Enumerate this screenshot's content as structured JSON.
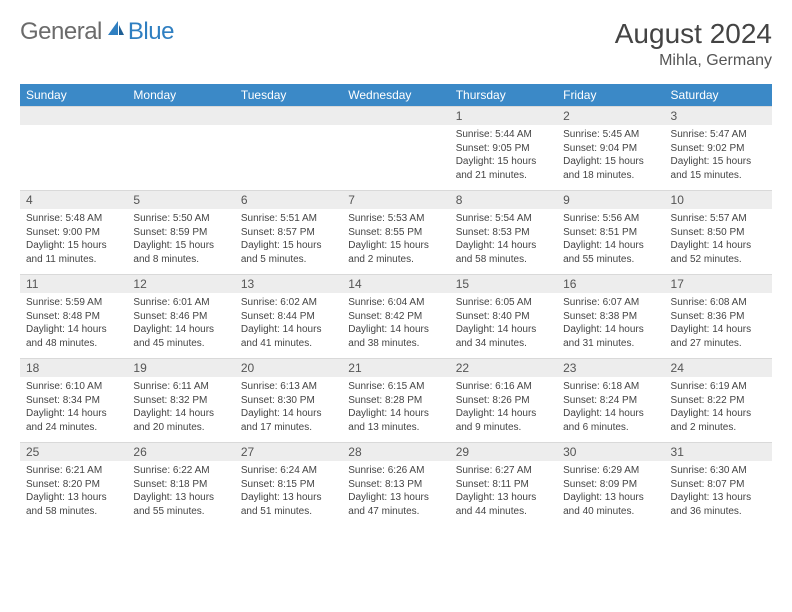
{
  "brand": {
    "text1": "General",
    "text2": "Blue"
  },
  "title": "August 2024",
  "location": "Mihla, Germany",
  "colors": {
    "header_bg": "#3b89c7",
    "header_text": "#ffffff",
    "daynum_bg": "#ededed",
    "border": "#d9d9d9",
    "brand_gray": "#6b6b6b",
    "brand_blue": "#2f7fc1"
  },
  "weekdays": [
    "Sunday",
    "Monday",
    "Tuesday",
    "Wednesday",
    "Thursday",
    "Friday",
    "Saturday"
  ],
  "weeks": [
    [
      null,
      null,
      null,
      null,
      {
        "n": "1",
        "sr": "Sunrise: 5:44 AM",
        "ss": "Sunset: 9:05 PM",
        "d1": "Daylight: 15 hours",
        "d2": "and 21 minutes."
      },
      {
        "n": "2",
        "sr": "Sunrise: 5:45 AM",
        "ss": "Sunset: 9:04 PM",
        "d1": "Daylight: 15 hours",
        "d2": "and 18 minutes."
      },
      {
        "n": "3",
        "sr": "Sunrise: 5:47 AM",
        "ss": "Sunset: 9:02 PM",
        "d1": "Daylight: 15 hours",
        "d2": "and 15 minutes."
      }
    ],
    [
      {
        "n": "4",
        "sr": "Sunrise: 5:48 AM",
        "ss": "Sunset: 9:00 PM",
        "d1": "Daylight: 15 hours",
        "d2": "and 11 minutes."
      },
      {
        "n": "5",
        "sr": "Sunrise: 5:50 AM",
        "ss": "Sunset: 8:59 PM",
        "d1": "Daylight: 15 hours",
        "d2": "and 8 minutes."
      },
      {
        "n": "6",
        "sr": "Sunrise: 5:51 AM",
        "ss": "Sunset: 8:57 PM",
        "d1": "Daylight: 15 hours",
        "d2": "and 5 minutes."
      },
      {
        "n": "7",
        "sr": "Sunrise: 5:53 AM",
        "ss": "Sunset: 8:55 PM",
        "d1": "Daylight: 15 hours",
        "d2": "and 2 minutes."
      },
      {
        "n": "8",
        "sr": "Sunrise: 5:54 AM",
        "ss": "Sunset: 8:53 PM",
        "d1": "Daylight: 14 hours",
        "d2": "and 58 minutes."
      },
      {
        "n": "9",
        "sr": "Sunrise: 5:56 AM",
        "ss": "Sunset: 8:51 PM",
        "d1": "Daylight: 14 hours",
        "d2": "and 55 minutes."
      },
      {
        "n": "10",
        "sr": "Sunrise: 5:57 AM",
        "ss": "Sunset: 8:50 PM",
        "d1": "Daylight: 14 hours",
        "d2": "and 52 minutes."
      }
    ],
    [
      {
        "n": "11",
        "sr": "Sunrise: 5:59 AM",
        "ss": "Sunset: 8:48 PM",
        "d1": "Daylight: 14 hours",
        "d2": "and 48 minutes."
      },
      {
        "n": "12",
        "sr": "Sunrise: 6:01 AM",
        "ss": "Sunset: 8:46 PM",
        "d1": "Daylight: 14 hours",
        "d2": "and 45 minutes."
      },
      {
        "n": "13",
        "sr": "Sunrise: 6:02 AM",
        "ss": "Sunset: 8:44 PM",
        "d1": "Daylight: 14 hours",
        "d2": "and 41 minutes."
      },
      {
        "n": "14",
        "sr": "Sunrise: 6:04 AM",
        "ss": "Sunset: 8:42 PM",
        "d1": "Daylight: 14 hours",
        "d2": "and 38 minutes."
      },
      {
        "n": "15",
        "sr": "Sunrise: 6:05 AM",
        "ss": "Sunset: 8:40 PM",
        "d1": "Daylight: 14 hours",
        "d2": "and 34 minutes."
      },
      {
        "n": "16",
        "sr": "Sunrise: 6:07 AM",
        "ss": "Sunset: 8:38 PM",
        "d1": "Daylight: 14 hours",
        "d2": "and 31 minutes."
      },
      {
        "n": "17",
        "sr": "Sunrise: 6:08 AM",
        "ss": "Sunset: 8:36 PM",
        "d1": "Daylight: 14 hours",
        "d2": "and 27 minutes."
      }
    ],
    [
      {
        "n": "18",
        "sr": "Sunrise: 6:10 AM",
        "ss": "Sunset: 8:34 PM",
        "d1": "Daylight: 14 hours",
        "d2": "and 24 minutes."
      },
      {
        "n": "19",
        "sr": "Sunrise: 6:11 AM",
        "ss": "Sunset: 8:32 PM",
        "d1": "Daylight: 14 hours",
        "d2": "and 20 minutes."
      },
      {
        "n": "20",
        "sr": "Sunrise: 6:13 AM",
        "ss": "Sunset: 8:30 PM",
        "d1": "Daylight: 14 hours",
        "d2": "and 17 minutes."
      },
      {
        "n": "21",
        "sr": "Sunrise: 6:15 AM",
        "ss": "Sunset: 8:28 PM",
        "d1": "Daylight: 14 hours",
        "d2": "and 13 minutes."
      },
      {
        "n": "22",
        "sr": "Sunrise: 6:16 AM",
        "ss": "Sunset: 8:26 PM",
        "d1": "Daylight: 14 hours",
        "d2": "and 9 minutes."
      },
      {
        "n": "23",
        "sr": "Sunrise: 6:18 AM",
        "ss": "Sunset: 8:24 PM",
        "d1": "Daylight: 14 hours",
        "d2": "and 6 minutes."
      },
      {
        "n": "24",
        "sr": "Sunrise: 6:19 AM",
        "ss": "Sunset: 8:22 PM",
        "d1": "Daylight: 14 hours",
        "d2": "and 2 minutes."
      }
    ],
    [
      {
        "n": "25",
        "sr": "Sunrise: 6:21 AM",
        "ss": "Sunset: 8:20 PM",
        "d1": "Daylight: 13 hours",
        "d2": "and 58 minutes."
      },
      {
        "n": "26",
        "sr": "Sunrise: 6:22 AM",
        "ss": "Sunset: 8:18 PM",
        "d1": "Daylight: 13 hours",
        "d2": "and 55 minutes."
      },
      {
        "n": "27",
        "sr": "Sunrise: 6:24 AM",
        "ss": "Sunset: 8:15 PM",
        "d1": "Daylight: 13 hours",
        "d2": "and 51 minutes."
      },
      {
        "n": "28",
        "sr": "Sunrise: 6:26 AM",
        "ss": "Sunset: 8:13 PM",
        "d1": "Daylight: 13 hours",
        "d2": "and 47 minutes."
      },
      {
        "n": "29",
        "sr": "Sunrise: 6:27 AM",
        "ss": "Sunset: 8:11 PM",
        "d1": "Daylight: 13 hours",
        "d2": "and 44 minutes."
      },
      {
        "n": "30",
        "sr": "Sunrise: 6:29 AM",
        "ss": "Sunset: 8:09 PM",
        "d1": "Daylight: 13 hours",
        "d2": "and 40 minutes."
      },
      {
        "n": "31",
        "sr": "Sunrise: 6:30 AM",
        "ss": "Sunset: 8:07 PM",
        "d1": "Daylight: 13 hours",
        "d2": "and 36 minutes."
      }
    ]
  ]
}
